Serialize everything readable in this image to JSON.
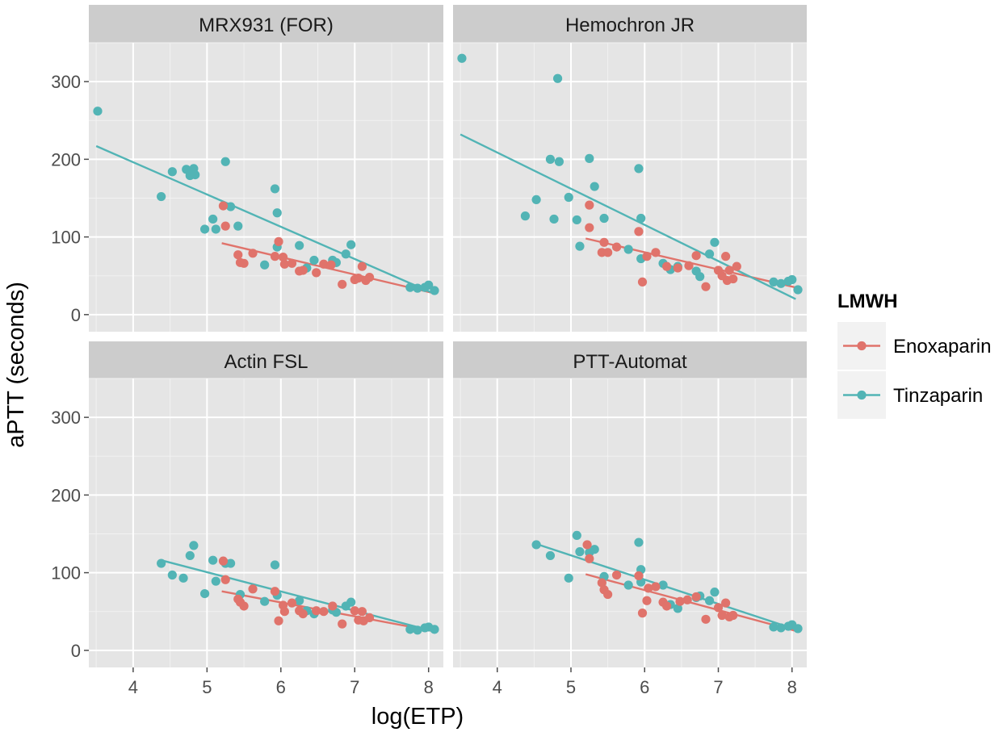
{
  "chart_data": {
    "type": "scatter",
    "layout": "faceted 2x2 with linear fit lines",
    "xlabel": "log(ETP)",
    "ylabel": "aPTT (seconds)",
    "xlim": [
      3.4,
      8.2
    ],
    "ylim": [
      -22,
      350
    ],
    "xticks": [
      4,
      5,
      6,
      7,
      8
    ],
    "yticks": [
      0,
      100,
      200,
      300
    ],
    "grid": true,
    "legend": {
      "title": "LMWH",
      "placement": "right",
      "entries": [
        "Enoxaparin",
        "Tinzaparin"
      ]
    },
    "colors": {
      "Enoxaparin": "#e0736b",
      "Tinzaparin": "#52b4b5",
      "panel_bg": "#e5e5e5",
      "strip_bg": "#cccccc"
    },
    "series_names": [
      "Enoxaparin",
      "Tinzaparin"
    ],
    "panels": [
      {
        "title": "MRX931 (FOR)",
        "fits": {
          "Enoxaparin": {
            "x": [
              5.2,
              8.05
            ],
            "y": [
              92,
              28
            ]
          },
          "Tinzaparin": {
            "x": [
              3.5,
              8.05
            ],
            "y": [
              217,
              28
            ]
          }
        },
        "points": {
          "Enoxaparin": [
            [
              5.22,
              140
            ],
            [
              5.25,
              114
            ],
            [
              5.42,
              77
            ],
            [
              5.45,
              67
            ],
            [
              5.5,
              66
            ],
            [
              5.62,
              79
            ],
            [
              5.92,
              75
            ],
            [
              5.97,
              94
            ],
            [
              6.03,
              74
            ],
            [
              6.05,
              65
            ],
            [
              6.15,
              66
            ],
            [
              6.25,
              56
            ],
            [
              6.3,
              57
            ],
            [
              6.48,
              54
            ],
            [
              6.58,
              65
            ],
            [
              6.68,
              64
            ],
            [
              6.83,
              39
            ],
            [
              7.0,
              45
            ],
            [
              7.05,
              47
            ],
            [
              7.1,
              62
            ],
            [
              7.15,
              44
            ],
            [
              7.2,
              48
            ]
          ],
          "Tinzaparin": [
            [
              3.52,
              262
            ],
            [
              4.38,
              152
            ],
            [
              4.53,
              184
            ],
            [
              4.72,
              187
            ],
            [
              4.77,
              179
            ],
            [
              4.82,
              188
            ],
            [
              4.84,
              180
            ],
            [
              4.97,
              110
            ],
            [
              5.08,
              123
            ],
            [
              5.12,
              110
            ],
            [
              5.25,
              197
            ],
            [
              5.32,
              139
            ],
            [
              5.42,
              114
            ],
            [
              5.78,
              64
            ],
            [
              5.92,
              162
            ],
            [
              5.95,
              131
            ],
            [
              5.95,
              87
            ],
            [
              6.25,
              89
            ],
            [
              6.35,
              60
            ],
            [
              6.45,
              70
            ],
            [
              6.7,
              70
            ],
            [
              6.75,
              67
            ],
            [
              6.88,
              78
            ],
            [
              6.95,
              90
            ],
            [
              7.75,
              35
            ],
            [
              7.85,
              34
            ],
            [
              7.95,
              35
            ],
            [
              8.0,
              38
            ],
            [
              8.08,
              31
            ]
          ]
        }
      },
      {
        "title": "Hemochron JR",
        "fits": {
          "Enoxaparin": {
            "x": [
              5.2,
              8.05
            ],
            "y": [
              98,
              35
            ]
          },
          "Tinzaparin": {
            "x": [
              3.5,
              8.05
            ],
            "y": [
              232,
              20
            ]
          }
        },
        "points": {
          "Enoxaparin": [
            [
              5.25,
              141
            ],
            [
              5.25,
              112
            ],
            [
              5.42,
              80
            ],
            [
              5.45,
              93
            ],
            [
              5.5,
              80
            ],
            [
              5.62,
              87
            ],
            [
              5.92,
              107
            ],
            [
              5.97,
              42
            ],
            [
              6.03,
              75
            ],
            [
              6.15,
              80
            ],
            [
              6.3,
              62
            ],
            [
              6.45,
              60
            ],
            [
              6.6,
              63
            ],
            [
              6.7,
              76
            ],
            [
              6.83,
              36
            ],
            [
              7.0,
              57
            ],
            [
              7.05,
              50
            ],
            [
              7.1,
              75
            ],
            [
              7.12,
              44
            ],
            [
              7.15,
              57
            ],
            [
              7.2,
              46
            ],
            [
              7.25,
              62
            ]
          ],
          "Tinzaparin": [
            [
              3.52,
              330
            ],
            [
              4.38,
              127
            ],
            [
              4.53,
              148
            ],
            [
              4.72,
              200
            ],
            [
              4.77,
              123
            ],
            [
              4.82,
              304
            ],
            [
              4.84,
              197
            ],
            [
              4.97,
              151
            ],
            [
              5.08,
              122
            ],
            [
              5.12,
              88
            ],
            [
              5.25,
              201
            ],
            [
              5.32,
              165
            ],
            [
              5.45,
              124
            ],
            [
              5.78,
              84
            ],
            [
              5.92,
              188
            ],
            [
              5.95,
              124
            ],
            [
              5.95,
              72
            ],
            [
              6.25,
              66
            ],
            [
              6.35,
              58
            ],
            [
              6.45,
              62
            ],
            [
              6.7,
              56
            ],
            [
              6.75,
              49
            ],
            [
              6.88,
              78
            ],
            [
              6.95,
              93
            ],
            [
              7.75,
              42
            ],
            [
              7.85,
              40
            ],
            [
              7.95,
              43
            ],
            [
              8.0,
              45
            ],
            [
              8.08,
              32
            ]
          ]
        }
      },
      {
        "title": "Actin FSL",
        "fits": {
          "Enoxaparin": {
            "x": [
              5.2,
              8.05
            ],
            "y": [
              76,
              25
            ]
          },
          "Tinzaparin": {
            "x": [
              4.38,
              8.05
            ],
            "y": [
              116,
              25
            ]
          }
        },
        "points": {
          "Enoxaparin": [
            [
              5.22,
              115
            ],
            [
              5.25,
              91
            ],
            [
              5.42,
              66
            ],
            [
              5.45,
              62
            ],
            [
              5.5,
              57
            ],
            [
              5.62,
              79
            ],
            [
              5.92,
              76
            ],
            [
              5.97,
              38
            ],
            [
              6.03,
              58
            ],
            [
              6.05,
              50
            ],
            [
              6.15,
              61
            ],
            [
              6.25,
              51
            ],
            [
              6.3,
              47
            ],
            [
              6.48,
              51
            ],
            [
              6.58,
              50
            ],
            [
              6.7,
              57
            ],
            [
              6.83,
              34
            ],
            [
              7.0,
              51
            ],
            [
              7.05,
              39
            ],
            [
              7.1,
              50
            ],
            [
              7.12,
              38
            ],
            [
              7.2,
              42
            ]
          ],
          "Tinzaparin": [
            [
              4.38,
              112
            ],
            [
              4.53,
              97
            ],
            [
              4.68,
              93
            ],
            [
              4.77,
              122
            ],
            [
              4.82,
              135
            ],
            [
              4.97,
              73
            ],
            [
              5.08,
              116
            ],
            [
              5.12,
              89
            ],
            [
              5.25,
              112
            ],
            [
              5.32,
              112
            ],
            [
              5.45,
              72
            ],
            [
              5.78,
              63
            ],
            [
              5.92,
              110
            ],
            [
              5.95,
              71
            ],
            [
              6.25,
              64
            ],
            [
              6.35,
              51
            ],
            [
              6.45,
              47
            ],
            [
              6.7,
              52
            ],
            [
              6.75,
              49
            ],
            [
              6.88,
              57
            ],
            [
              6.95,
              62
            ],
            [
              7.75,
              27
            ],
            [
              7.85,
              26
            ],
            [
              7.95,
              29
            ],
            [
              8.0,
              30
            ],
            [
              8.08,
              27
            ]
          ]
        }
      },
      {
        "title": "PTT-Automat",
        "fits": {
          "Enoxaparin": {
            "x": [
              5.2,
              8.05
            ],
            "y": [
              98,
              25
            ]
          },
          "Tinzaparin": {
            "x": [
              4.53,
              8.05
            ],
            "y": [
              137,
              27
            ]
          }
        },
        "points": {
          "Enoxaparin": [
            [
              5.22,
              136
            ],
            [
              5.25,
              118
            ],
            [
              5.42,
              87
            ],
            [
              5.45,
              78
            ],
            [
              5.5,
              72
            ],
            [
              5.62,
              97
            ],
            [
              5.92,
              96
            ],
            [
              5.97,
              48
            ],
            [
              6.03,
              64
            ],
            [
              6.05,
              80
            ],
            [
              6.15,
              82
            ],
            [
              6.25,
              62
            ],
            [
              6.3,
              57
            ],
            [
              6.48,
              63
            ],
            [
              6.58,
              65
            ],
            [
              6.7,
              69
            ],
            [
              6.83,
              40
            ],
            [
              7.0,
              55
            ],
            [
              7.05,
              45
            ],
            [
              7.1,
              61
            ],
            [
              7.15,
              43
            ],
            [
              7.2,
              45
            ]
          ],
          "Tinzaparin": [
            [
              4.53,
              136
            ],
            [
              4.72,
              122
            ],
            [
              4.97,
              93
            ],
            [
              5.08,
              148
            ],
            [
              5.12,
              127
            ],
            [
              5.25,
              126
            ],
            [
              5.32,
              130
            ],
            [
              5.45,
              95
            ],
            [
              5.78,
              84
            ],
            [
              5.92,
              139
            ],
            [
              5.95,
              104
            ],
            [
              5.95,
              88
            ],
            [
              6.25,
              84
            ],
            [
              6.35,
              59
            ],
            [
              6.45,
              54
            ],
            [
              6.7,
              68
            ],
            [
              6.75,
              70
            ],
            [
              6.88,
              64
            ],
            [
              6.95,
              75
            ],
            [
              7.75,
              30
            ],
            [
              7.85,
              29
            ],
            [
              7.95,
              31
            ],
            [
              8.0,
              33
            ],
            [
              8.08,
              28
            ]
          ]
        }
      }
    ]
  }
}
